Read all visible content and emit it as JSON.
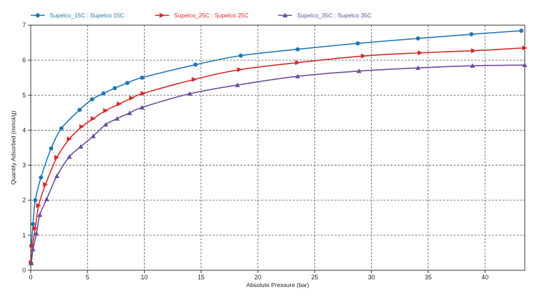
{
  "chart_data": {
    "type": "line",
    "xlabel": "Absolute Pressure (bar)",
    "ylabel": "Quantity Adsorbed (mmol/g)",
    "xlim": [
      0,
      43.5
    ],
    "ylim": [
      0,
      7
    ],
    "xticks": [
      0,
      5,
      10,
      15,
      20,
      25,
      30,
      35,
      40
    ],
    "yticks": [
      0,
      1,
      2,
      3,
      4,
      5,
      6,
      7
    ],
    "grid": true,
    "legend_position": "top",
    "series": [
      {
        "name": "Supelco_15C : Supelco 15C",
        "color": "#1f77b4",
        "marker": "circle",
        "x": [
          0.05,
          0.2,
          0.4,
          0.9,
          1.8,
          2.7,
          4.3,
          5.4,
          6.4,
          7.4,
          8.5,
          9.8,
          14.5,
          18.5,
          23.5,
          28.8,
          34.1,
          38.8,
          43.2
        ],
        "y": [
          0.7,
          1.32,
          2.0,
          2.65,
          3.48,
          4.05,
          4.58,
          4.88,
          5.05,
          5.2,
          5.35,
          5.5,
          5.87,
          6.13,
          6.31,
          6.48,
          6.62,
          6.74,
          6.84
        ]
      },
      {
        "name": "Supelco_25C : Supelco 25C",
        "color": "#d62728",
        "marker": "triangle-right",
        "x": [
          0.05,
          0.15,
          0.4,
          0.7,
          1.3,
          2.3,
          3.4,
          4.5,
          5.5,
          6.6,
          7.8,
          8.9,
          9.9,
          14.4,
          18.4,
          23.5,
          29.3,
          34.3,
          39.0,
          43.5
        ],
        "y": [
          0.22,
          0.7,
          1.2,
          1.85,
          2.45,
          3.22,
          3.75,
          4.1,
          4.33,
          4.56,
          4.75,
          4.92,
          5.05,
          5.45,
          5.73,
          5.93,
          6.12,
          6.21,
          6.27,
          6.35
        ]
      },
      {
        "name": "Supelco_35C : Supelco 35C",
        "color": "#6b4c9a",
        "marker": "triangle-up",
        "x": [
          0.05,
          0.2,
          0.5,
          0.8,
          1.4,
          2.3,
          3.4,
          4.4,
          5.5,
          6.6,
          7.6,
          8.7,
          9.8,
          14.0,
          18.2,
          23.5,
          28.9,
          34.1,
          38.9,
          43.5
        ],
        "y": [
          0.2,
          0.6,
          1.05,
          1.58,
          2.03,
          2.69,
          3.24,
          3.53,
          3.83,
          4.16,
          4.33,
          4.49,
          4.65,
          5.04,
          5.29,
          5.54,
          5.69,
          5.78,
          5.84,
          5.86
        ]
      }
    ]
  }
}
